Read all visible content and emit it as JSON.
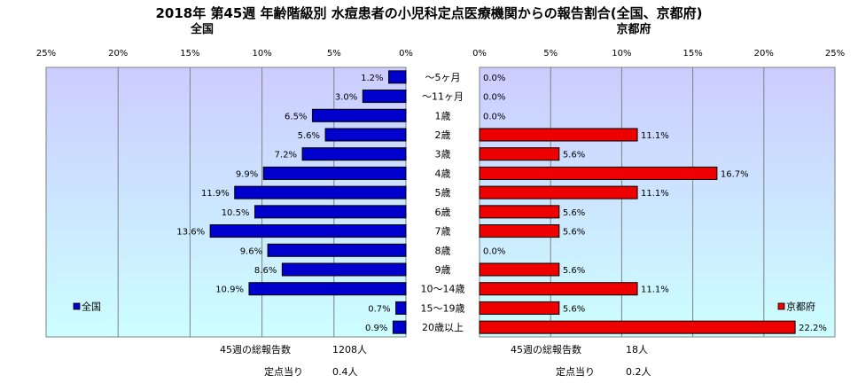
{
  "title": "2018年 第45週 年齢階級別 水痘患者の小児科定点医療機関からの報告割合(全国、京都府)",
  "colors": {
    "left_bar": "#0000cc",
    "right_bar": "#ee0000",
    "plot_bg_top": "#ccccff",
    "plot_bg_bottom": "#ccffff"
  },
  "chart_data": [
    {
      "type": "bar",
      "orientation": "horizontal",
      "direction": "right-to-left",
      "title": "全国",
      "categories": [
        "～5ヶ月",
        "～11ヶ月",
        "1歳",
        "2歳",
        "3歳",
        "4歳",
        "5歳",
        "6歳",
        "7歳",
        "8歳",
        "9歳",
        "10～14歳",
        "15～19歳",
        "20歳以上"
      ],
      "series": [
        {
          "name": "全国",
          "values": [
            1.2,
            3.0,
            6.5,
            5.6,
            7.2,
            9.9,
            11.9,
            10.5,
            13.6,
            9.6,
            8.6,
            10.9,
            0.7,
            0.9
          ],
          "labels": [
            "1.2%",
            "3.0%",
            "6.5%",
            "5.6%",
            "7.2%",
            "9.9%",
            "11.9%",
            "10.5%",
            "13.6%",
            "9.6%",
            "8.6%",
            "10.9%",
            "0.7%",
            "0.9%"
          ]
        }
      ],
      "xlim": [
        0,
        25
      ],
      "xticks": [
        "25%",
        "20%",
        "15%",
        "10%",
        "5%",
        "0%"
      ],
      "legend_position": "bottom-left",
      "grid": true
    },
    {
      "type": "bar",
      "orientation": "horizontal",
      "direction": "left-to-right",
      "title": "京都府",
      "categories": [
        "～5ヶ月",
        "～11ヶ月",
        "1歳",
        "2歳",
        "3歳",
        "4歳",
        "5歳",
        "6歳",
        "7歳",
        "8歳",
        "9歳",
        "10～14歳",
        "15～19歳",
        "20歳以上"
      ],
      "series": [
        {
          "name": "京都府",
          "values": [
            0.0,
            0.0,
            0.0,
            11.1,
            5.6,
            16.7,
            11.1,
            5.6,
            5.6,
            0.0,
            5.6,
            11.1,
            5.6,
            22.2
          ],
          "labels": [
            "0.0%",
            "0.0%",
            "0.0%",
            "11.1%",
            "5.6%",
            "16.7%",
            "11.1%",
            "5.6%",
            "5.6%",
            "0.0%",
            "5.6%",
            "11.1%",
            "5.6%",
            "22.2%"
          ]
        }
      ],
      "xlim": [
        0,
        25
      ],
      "xticks": [
        "0%",
        "5%",
        "10%",
        "15%",
        "20%",
        "25%"
      ],
      "legend_position": "bottom-right",
      "grid": true
    }
  ],
  "footer": {
    "left": {
      "total_label": "45週の総報告数",
      "total_value": "1208人",
      "per_label": "定点当り",
      "per_value": "0.4人"
    },
    "right": {
      "total_label": "45週の総報告数",
      "total_value": "18人",
      "per_label": "定点当り",
      "per_value": "0.2人"
    }
  }
}
